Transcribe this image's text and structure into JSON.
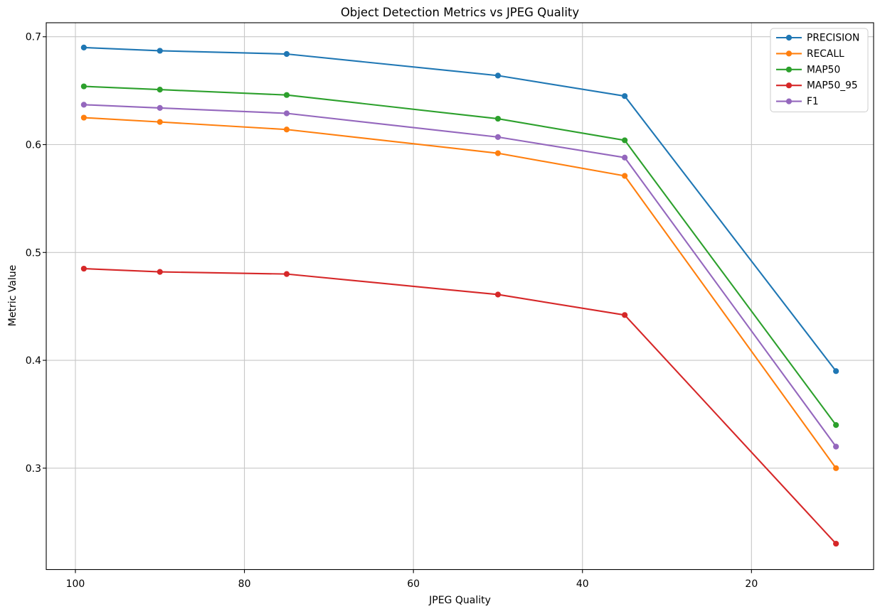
{
  "figure": {
    "background": "#ffffff"
  },
  "chart_data": {
    "type": "line",
    "title": "Object Detection Metrics vs JPEG Quality",
    "xlabel": "JPEG Quality",
    "ylabel": "Metric Value",
    "x": [
      99,
      90,
      75,
      50,
      35,
      10
    ],
    "series": [
      {
        "name": "PRECISION",
        "color": "#1f77b4",
        "values": [
          0.69,
          0.687,
          0.684,
          0.664,
          0.645,
          0.39
        ]
      },
      {
        "name": "RECALL",
        "color": "#ff7f0e",
        "values": [
          0.625,
          0.621,
          0.614,
          0.592,
          0.571,
          0.3
        ]
      },
      {
        "name": "MAP50",
        "color": "#2ca02c",
        "values": [
          0.654,
          0.651,
          0.646,
          0.624,
          0.604,
          0.34
        ]
      },
      {
        "name": "MAP50_95",
        "color": "#d62728",
        "values": [
          0.485,
          0.482,
          0.48,
          0.461,
          0.442,
          0.23
        ]
      },
      {
        "name": "F1",
        "color": "#9467bd",
        "values": [
          0.637,
          0.634,
          0.629,
          0.607,
          0.588,
          0.32
        ]
      }
    ],
    "x_ticks": [
      100,
      80,
      60,
      40,
      20
    ],
    "y_ticks": [
      0.3,
      0.4,
      0.5,
      0.6,
      0.7
    ],
    "x_axis_inverted": true,
    "xlim": [
      103.45,
      5.55
    ],
    "ylim": [
      0.206,
      0.713
    ],
    "grid": true,
    "grid_color": "#c7c7c7",
    "spine_color": "#000000",
    "legend_position": "upper right",
    "marker": "o"
  }
}
